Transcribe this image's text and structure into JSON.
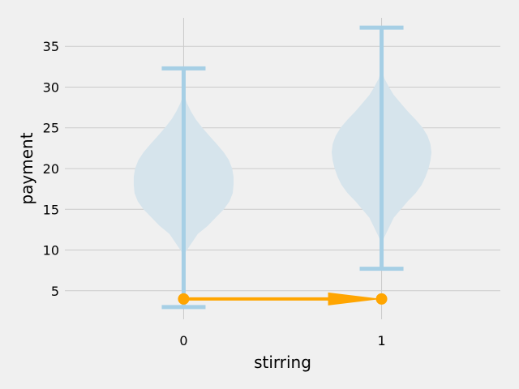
{
  "chart_data": {
    "type": "violin",
    "title": "",
    "xlabel": "stirring",
    "ylabel": "payment",
    "categories": [
      "0",
      "1"
    ],
    "xlim": [
      -0.6,
      1.6
    ],
    "ylim": [
      1.5,
      38.5
    ],
    "yticks": [
      5,
      10,
      15,
      20,
      25,
      30,
      35
    ],
    "grid": true,
    "violins": [
      {
        "category": "0",
        "min": 3.0,
        "max": 32.3,
        "density": [
          [
            9.5,
            0.0
          ],
          [
            12,
            0.07
          ],
          [
            13,
            0.12
          ],
          [
            14,
            0.16
          ],
          [
            15,
            0.2
          ],
          [
            16,
            0.23
          ],
          [
            17,
            0.246
          ],
          [
            18,
            0.25
          ],
          [
            19,
            0.25
          ],
          [
            20,
            0.243
          ],
          [
            21,
            0.227
          ],
          [
            22,
            0.2
          ],
          [
            23,
            0.165
          ],
          [
            24,
            0.128
          ],
          [
            25,
            0.092
          ],
          [
            26,
            0.06
          ],
          [
            27,
            0.035
          ],
          [
            28,
            0.015
          ],
          [
            29,
            0.0
          ]
        ]
      },
      {
        "category": "1",
        "min": 7.7,
        "max": 37.3,
        "density": [
          [
            11,
            0.0
          ],
          [
            12,
            0.02
          ],
          [
            14,
            0.06
          ],
          [
            16,
            0.13
          ],
          [
            17,
            0.17
          ],
          [
            18,
            0.2
          ],
          [
            19,
            0.22
          ],
          [
            20,
            0.235
          ],
          [
            21,
            0.245
          ],
          [
            22,
            0.25
          ],
          [
            23,
            0.245
          ],
          [
            24,
            0.23
          ],
          [
            25,
            0.205
          ],
          [
            26,
            0.17
          ],
          [
            27,
            0.13
          ],
          [
            28,
            0.095
          ],
          [
            29,
            0.06
          ],
          [
            30,
            0.035
          ],
          [
            31,
            0.013
          ],
          [
            32,
            0.0
          ]
        ]
      }
    ],
    "annotation": {
      "type": "arrow",
      "from": [
        0,
        4.0
      ],
      "to": [
        1,
        4.0
      ],
      "color": "#ffa500"
    },
    "colors": {
      "violin_fill": "#d6e4ec",
      "whisker": "#a6cfe5",
      "grid": "#cbcbcb",
      "background": "#f0f0f0"
    }
  }
}
